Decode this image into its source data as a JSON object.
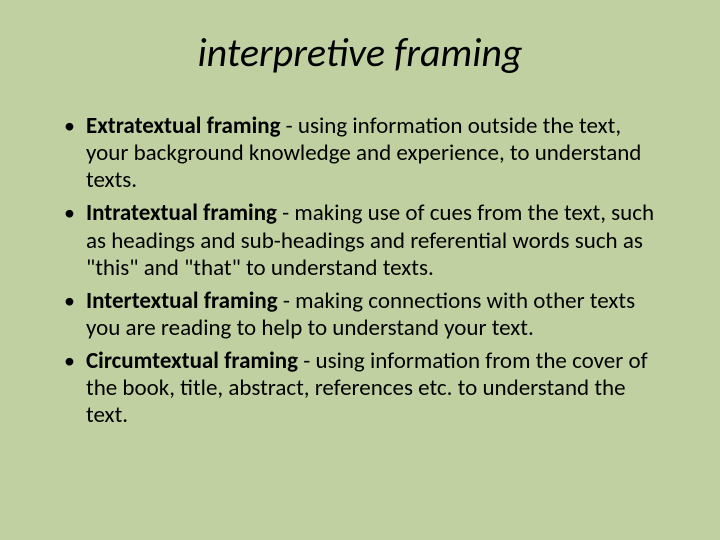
{
  "background_color": "#c0d0a0",
  "text_color": "#000000",
  "title": {
    "text": "interpretive framing",
    "font_style": "italic",
    "font_size_pt": 40
  },
  "bullet_style": {
    "marker": "•",
    "font_size_pt": 23,
    "lead_weight": "bold"
  },
  "bullets": [
    {
      "lead": "Extratextual framing",
      "rest": " - using information outside the text, your background knowledge and experience, to understand texts."
    },
    {
      "lead": "Intratextual framing",
      "rest": " - making use of cues from the text, such as headings and sub-headings and referential words such as \"this\" and \"that\" to understand texts."
    },
    {
      "lead": "Intertextual framing",
      "rest": " - making connections with other texts you are reading to help to understand your text."
    },
    {
      "lead": "Circumtextual framing",
      "rest": " - using information from the cover of the book, title, abstract, references etc. to understand the text."
    }
  ]
}
